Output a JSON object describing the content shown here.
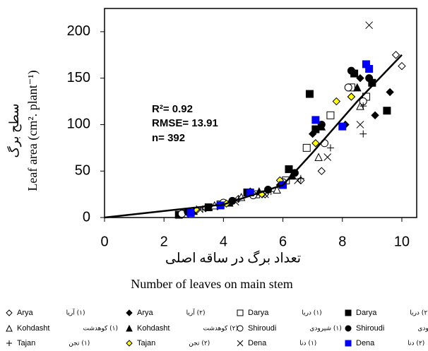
{
  "chart_data": {
    "type": "scatter",
    "xlabel_fa": "تعداد برگ در ساقه اصلی",
    "xlabel": "Number of leaves on main stem",
    "ylabel_fa": "سطح برگ",
    "ylabel": "Leaf area  (cm². plant⁻¹)",
    "annotations": [
      "R²= 0.92",
      "RMSE= 13.91",
      "n= 392"
    ],
    "xlim": [
      0,
      10.5
    ],
    "ylim": [
      0,
      225
    ],
    "xticks": [
      0,
      2,
      4,
      6,
      8,
      10
    ],
    "yticks": [
      0,
      50,
      100,
      150,
      200
    ],
    "fit_line": {
      "x": [
        0,
        4,
        6,
        7,
        8.5,
        10
      ],
      "y": [
        0,
        14,
        35,
        70,
        125,
        175
      ],
      "color": "#000000"
    },
    "series": [
      {
        "name": "Arya",
        "label_fa": "(۱) آریا",
        "marker": "diamond-open",
        "color": "#000000",
        "x": [
          2.6,
          3.4,
          4.5,
          5.4,
          6.6,
          7.3,
          8.3,
          9.0,
          9.8,
          10.0
        ],
        "values": [
          3,
          10,
          20,
          25,
          40,
          50,
          130,
          145,
          175,
          163
        ]
      },
      {
        "name": "Arya",
        "label_fa": "(۲) آریا",
        "marker": "diamond-filled",
        "color": "#000000",
        "x": [
          2.8,
          3.8,
          4.9,
          5.9,
          7.0,
          8.1,
          8.6,
          9.1,
          9.6
        ],
        "values": [
          5,
          12,
          28,
          35,
          90,
          100,
          150,
          110,
          135
        ]
      },
      {
        "name": "Darya",
        "label_fa": "(۱) دریا",
        "marker": "square-open",
        "color": "#000000",
        "x": [
          2.7,
          3.9,
          5.1,
          6.1,
          6.8,
          7.6,
          8.3,
          8.8
        ],
        "values": [
          4,
          14,
          25,
          40,
          75,
          110,
          140,
          130
        ]
      },
      {
        "name": "Darya",
        "label_fa": "(۲) دریا",
        "marker": "square-filled",
        "color": "#000000",
        "x": [
          2.5,
          3.5,
          4.8,
          6.2,
          6.9,
          7.1,
          8.4,
          9.0,
          9.5
        ],
        "values": [
          3,
          11,
          27,
          52,
          133,
          95,
          155,
          145,
          115
        ]
      },
      {
        "name": "Kohdasht",
        "label_fa": "(۱) کوهدشت",
        "marker": "triangle-open",
        "color": "#000000",
        "x": [
          2.9,
          3.7,
          4.6,
          5.8,
          7.2,
          8.6
        ],
        "values": [
          6,
          13,
          22,
          30,
          65,
          120
        ]
      },
      {
        "name": "Kohdasht",
        "label_fa": "(۲) کوهدشت",
        "marker": "triangle-filled",
        "color": "#000000",
        "x": [
          3.0,
          4.2,
          5.2,
          6.3,
          7.3,
          8.5
        ],
        "values": [
          7,
          16,
          28,
          45,
          98,
          140
        ]
      },
      {
        "name": "Shiroudi",
        "label_fa": "(۱) شیرودی",
        "marker": "circle-open",
        "color": "#000000",
        "x": [
          2.6,
          4.0,
          5.0,
          6.0,
          7.4,
          8.2,
          8.7
        ],
        "values": [
          4,
          16,
          24,
          38,
          80,
          140,
          125
        ]
      },
      {
        "name": "Shiroudi",
        "label_fa": "(۲) شیرودی",
        "marker": "circle-filled",
        "color": "#000000",
        "x": [
          2.8,
          4.3,
          5.5,
          6.4,
          7.3,
          8.3,
          8.9
        ],
        "values": [
          6,
          18,
          30,
          48,
          100,
          158,
          150
        ]
      },
      {
        "name": "Tajan",
        "label_fa": "(۱) تجن",
        "marker": "plus",
        "color": "#000000",
        "x": [
          3.3,
          4.5,
          5.6,
          6.6,
          7.6,
          8.7,
          8.7
        ],
        "values": [
          9,
          20,
          28,
          42,
          75,
          90,
          120
        ]
      },
      {
        "name": "Tajan",
        "label_fa": "(۲) تجن",
        "marker": "diamond-filled",
        "color": "#ffff00",
        "x": [
          3.1,
          4.1,
          5.3,
          5.9,
          7.1,
          7.8,
          8.3
        ],
        "values": [
          8,
          15,
          25,
          40,
          80,
          125,
          130
        ]
      },
      {
        "name": "Dena",
        "label_fa": "(۱) دنا",
        "marker": "cross",
        "color": "#000000",
        "x": [
          3.2,
          4.4,
          5.4,
          6.5,
          7.5,
          8.6,
          8.9
        ],
        "values": [
          9,
          17,
          25,
          40,
          65,
          100,
          207
        ]
      },
      {
        "name": "Dena",
        "label_fa": "(۲) دنا",
        "marker": "square-filled",
        "color": "#0000ff",
        "x": [
          2.9,
          3.9,
          4.9,
          6.0,
          7.1,
          8.0,
          8.8,
          8.9
        ],
        "values": [
          5,
          13,
          27,
          35,
          105,
          98,
          165,
          160
        ]
      }
    ]
  }
}
